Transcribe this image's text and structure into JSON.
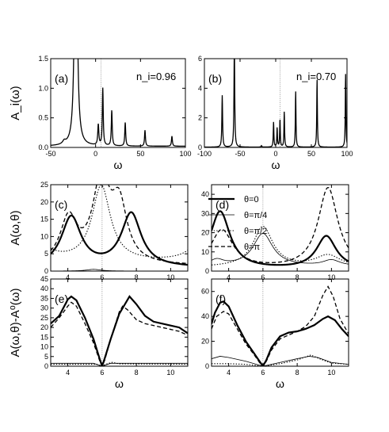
{
  "chart_data": [
    {
      "panel_label": "(a)",
      "type": "line",
      "annotation": "n_i=0.96",
      "xlabel": "ω",
      "ylabel": "A_i(ω)",
      "xlim": [
        -50,
        100
      ],
      "ylim": [
        0,
        1.5
      ],
      "xticks": [
        "-50",
        "0",
        "50",
        "100"
      ],
      "yticks": [
        "0.0",
        "0.5",
        "1.0",
        "1.5"
      ],
      "dotted_vline_x": 6,
      "baseline": 0.02,
      "peaks": [
        {
          "x": -35,
          "y": 0.05,
          "w": 2.0
        },
        {
          "x": -22,
          "y": 6.0,
          "w": 1.4
        },
        {
          "x": 3,
          "y": 0.35,
          "w": 0.7
        },
        {
          "x": 8,
          "y": 0.97,
          "w": 0.6
        },
        {
          "x": 18,
          "y": 0.6,
          "w": 0.6
        },
        {
          "x": 33,
          "y": 0.4,
          "w": 0.6
        },
        {
          "x": 55,
          "y": 0.27,
          "w": 0.6
        },
        {
          "x": 85,
          "y": 0.17,
          "w": 0.6
        }
      ]
    },
    {
      "panel_label": "(b)",
      "type": "line",
      "annotation": "n_i=0.70",
      "xlabel": "ω",
      "ylabel": "",
      "xlim": [
        -100,
        100
      ],
      "ylim": [
        0,
        6
      ],
      "xticks": [
        "-100",
        "-50",
        "0",
        "50",
        "100"
      ],
      "yticks": [
        "0",
        "2",
        "4",
        "6"
      ],
      "dotted_vline_x": 6,
      "baseline": 0.02,
      "peaks": [
        {
          "x": -75,
          "y": 3.5,
          "w": 0.6
        },
        {
          "x": -58,
          "y": 7.0,
          "w": 0.6
        },
        {
          "x": -20,
          "y": 0.1,
          "w": 0.6
        },
        {
          "x": -3,
          "y": 1.7,
          "w": 0.5
        },
        {
          "x": 2,
          "y": 1.3,
          "w": 0.5
        },
        {
          "x": 6,
          "y": 1.9,
          "w": 0.5
        },
        {
          "x": 12,
          "y": 2.4,
          "w": 0.5
        },
        {
          "x": 28,
          "y": 3.8,
          "w": 0.5
        },
        {
          "x": 58,
          "y": 4.6,
          "w": 0.5
        },
        {
          "x": 98,
          "y": 5.0,
          "w": 0.5
        }
      ]
    },
    {
      "panel_label": "(c)",
      "type": "line",
      "xlabel": "",
      "ylabel": "A(ω,θ)",
      "xlim": [
        3,
        11
      ],
      "ylim": [
        0,
        25
      ],
      "xticks": [
        "4",
        "6",
        "8",
        "10"
      ],
      "yticks": [
        "0",
        "5",
        "10",
        "15",
        "20",
        "25"
      ],
      "dotted_vline_x": 6,
      "series": [
        {
          "name": "θ=0",
          "style": "thick",
          "base": 1.0,
          "peaks": [
            {
              "x": 4.2,
              "h": 14.5,
              "w": 0.7
            },
            {
              "x": 7.7,
              "h": 15.5,
              "w": 0.7
            }
          ]
        },
        {
          "name": "θ=π/4",
          "style": "thin",
          "base": 0,
          "peaks": [
            {
              "x": 5.5,
              "h": 0.5,
              "w": 0.5
            }
          ]
        },
        {
          "name": "θ=π/2",
          "style": "dotted",
          "base": 2.5,
          "peaks": [
            {
              "x": 5.95,
              "h": 22.0,
              "w": 0.65
            },
            {
              "x": 2.0,
              "h": 8.0,
              "w": 0.8
            },
            {
              "x": 12.0,
              "h": 8.0,
              "w": 0.8
            }
          ]
        },
        {
          "name": "θ=π",
          "style": "dashed",
          "base": 1.5,
          "peaks": [
            {
              "x": 4.05,
              "h": 13.0,
              "w": 0.6
            },
            {
              "x": 5.95,
              "h": 23.5,
              "w": 0.6
            },
            {
              "x": 7.0,
              "h": 16.0,
              "w": 0.55
            }
          ]
        }
      ]
    },
    {
      "panel_label": "(d)",
      "type": "line",
      "xlabel": "",
      "ylabel": "",
      "xlim": [
        3,
        11
      ],
      "ylim": [
        0,
        45
      ],
      "xticks": [
        "4",
        "6",
        "8",
        "10"
      ],
      "yticks": [
        "0",
        "10",
        "20",
        "30",
        "40"
      ],
      "dotted_vline_x": 6,
      "series": [
        {
          "name": "θ=0",
          "style": "thick",
          "base": 1.0,
          "peaks": [
            {
              "x": 3.5,
              "h": 30.0,
              "w": 0.7
            },
            {
              "x": 9.7,
              "h": 17.0,
              "w": 0.7
            }
          ]
        },
        {
          "name": "θ=π/4",
          "style": "thin",
          "base": 2.5,
          "peaks": [
            {
              "x": 6.0,
              "h": 17.0,
              "w": 0.7
            },
            {
              "x": 3.3,
              "h": 3.0,
              "w": 0.5
            },
            {
              "x": 10.0,
              "h": 3.0,
              "w": 0.6
            }
          ]
        },
        {
          "name": "θ=π/2",
          "style": "dotted",
          "base": 2.0,
          "peaks": [
            {
              "x": 6.0,
              "h": 21.0,
              "w": 0.7
            },
            {
              "x": 9.8,
              "h": 6.0,
              "w": 0.9
            }
          ]
        },
        {
          "name": "θ=π",
          "style": "dashed",
          "base": 1.2,
          "peaks": [
            {
              "x": 3.6,
              "h": 20.0,
              "w": 0.8
            },
            {
              "x": 9.8,
              "h": 42.0,
              "w": 0.7
            }
          ]
        }
      ]
    },
    {
      "panel_label": "(e)",
      "type": "line",
      "xlabel": "ω",
      "ylabel": "A(ω,θ)-A⁰(ω)",
      "xlim": [
        3,
        11
      ],
      "ylim": [
        0,
        45
      ],
      "xticks": [
        "4",
        "6",
        "8",
        "10"
      ],
      "yticks": [
        "0",
        "5",
        "10",
        "15",
        "20",
        "25",
        "30",
        "35",
        "40",
        "45"
      ],
      "dotted_vline_x": 6,
      "series": [
        {
          "name": "θ=0",
          "style": "thick",
          "points": [
            [
              3,
              22
            ],
            [
              3.5,
              26
            ],
            [
              4.0,
              34.5
            ],
            [
              4.2,
              36
            ],
            [
              4.5,
              34
            ],
            [
              5.0,
              25
            ],
            [
              5.5,
              14
            ],
            [
              5.85,
              4
            ],
            [
              6.0,
              0
            ],
            [
              6.15,
              4
            ],
            [
              6.5,
              14
            ],
            [
              7.0,
              27
            ],
            [
              7.4,
              33
            ],
            [
              7.6,
              36
            ],
            [
              8.0,
              32
            ],
            [
              8.5,
              26
            ],
            [
              9.0,
              23
            ],
            [
              10.0,
              21
            ],
            [
              10.5,
              20
            ],
            [
              11.0,
              17
            ]
          ]
        },
        {
          "name": "θ=π/4",
          "style": "thin",
          "points": [
            [
              3,
              1.5
            ],
            [
              5.5,
              1.5
            ],
            [
              6.0,
              0
            ],
            [
              6.5,
              1.5
            ],
            [
              11.0,
              1.5
            ]
          ]
        },
        {
          "name": "θ=π/2",
          "style": "dotted",
          "points": [
            [
              3,
              1.0
            ],
            [
              5.7,
              1.0
            ],
            [
              6.0,
              0
            ],
            [
              6.2,
              1.0
            ],
            [
              6.6,
              2.0
            ],
            [
              7.0,
              1.2
            ],
            [
              11.0,
              1.0
            ]
          ]
        },
        {
          "name": "θ=π",
          "style": "dashed",
          "points": [
            [
              3,
              20
            ],
            [
              3.5,
              25
            ],
            [
              4.0,
              31
            ],
            [
              4.2,
              33
            ],
            [
              4.5,
              31
            ],
            [
              5.0,
              22
            ],
            [
              5.5,
              12
            ],
            [
              5.85,
              3
            ],
            [
              6.0,
              0
            ],
            [
              6.15,
              3
            ],
            [
              6.5,
              14
            ],
            [
              7.0,
              28
            ],
            [
              7.2,
              31
            ],
            [
              7.5,
              29
            ],
            [
              8.0,
              24
            ],
            [
              8.5,
              22
            ],
            [
              9.0,
              21
            ],
            [
              10.0,
              19
            ],
            [
              10.5,
              18
            ],
            [
              11.0,
              16
            ]
          ]
        }
      ]
    },
    {
      "panel_label": "(f)",
      "type": "line",
      "xlabel": "ω",
      "ylabel": "",
      "xlim": [
        3,
        11
      ],
      "ylim": [
        0,
        70
      ],
      "xticks": [
        "4",
        "6",
        "8",
        "10"
      ],
      "yticks": [
        "0",
        "20",
        "40",
        "60"
      ],
      "dotted_vline_x": 6,
      "series": [
        {
          "name": "θ=0",
          "style": "thick",
          "points": [
            [
              3,
              34
            ],
            [
              3.2,
              43
            ],
            [
              3.5,
              51
            ],
            [
              3.7,
              52
            ],
            [
              4.0,
              48
            ],
            [
              4.5,
              33
            ],
            [
              5.0,
              20
            ],
            [
              5.5,
              10
            ],
            [
              5.8,
              4
            ],
            [
              6.0,
              0
            ],
            [
              6.2,
              5
            ],
            [
              6.5,
              15
            ],
            [
              7.0,
              24
            ],
            [
              7.5,
              27
            ],
            [
              8.0,
              28
            ],
            [
              8.5,
              30
            ],
            [
              9.0,
              33
            ],
            [
              9.5,
              38
            ],
            [
              9.8,
              40
            ],
            [
              10.2,
              37
            ],
            [
              10.6,
              30
            ],
            [
              11.0,
              24
            ]
          ]
        },
        {
          "name": "θ=π/4",
          "style": "thin",
          "points": [
            [
              3,
              6
            ],
            [
              3.5,
              8
            ],
            [
              4.0,
              7
            ],
            [
              5.0,
              4
            ],
            [
              6.0,
              0
            ],
            [
              7.0,
              3
            ],
            [
              8.0,
              6
            ],
            [
              8.7,
              8
            ],
            [
              9.2,
              7
            ],
            [
              10.0,
              3
            ],
            [
              11.0,
              1.5
            ]
          ]
        },
        {
          "name": "θ=π/2",
          "style": "dotted",
          "points": [
            [
              3,
              2
            ],
            [
              4.0,
              2
            ],
            [
              5.0,
              1.5
            ],
            [
              6.0,
              0
            ],
            [
              7.0,
              2
            ],
            [
              8.0,
              5
            ],
            [
              8.8,
              9
            ],
            [
              9.3,
              6
            ],
            [
              10.0,
              2.5
            ],
            [
              11.0,
              1.5
            ]
          ]
        },
        {
          "name": "θ=π",
          "style": "dashed",
          "points": [
            [
              3,
              30
            ],
            [
              3.3,
              40
            ],
            [
              3.7,
              44
            ],
            [
              4.0,
              42
            ],
            [
              4.5,
              30
            ],
            [
              5.0,
              18
            ],
            [
              5.5,
              9
            ],
            [
              5.8,
              3
            ],
            [
              6.0,
              0
            ],
            [
              6.2,
              4
            ],
            [
              6.5,
              13
            ],
            [
              7.0,
              22
            ],
            [
              7.5,
              25
            ],
            [
              8.0,
              28
            ],
            [
              8.5,
              32
            ],
            [
              9.0,
              40
            ],
            [
              9.5,
              57
            ],
            [
              9.8,
              64
            ],
            [
              10.1,
              56
            ],
            [
              10.5,
              38
            ],
            [
              11.0,
              26
            ]
          ]
        }
      ]
    }
  ],
  "legend": [
    "θ=0",
    "θ=π/4",
    "θ=π/2",
    "θ=π"
  ]
}
